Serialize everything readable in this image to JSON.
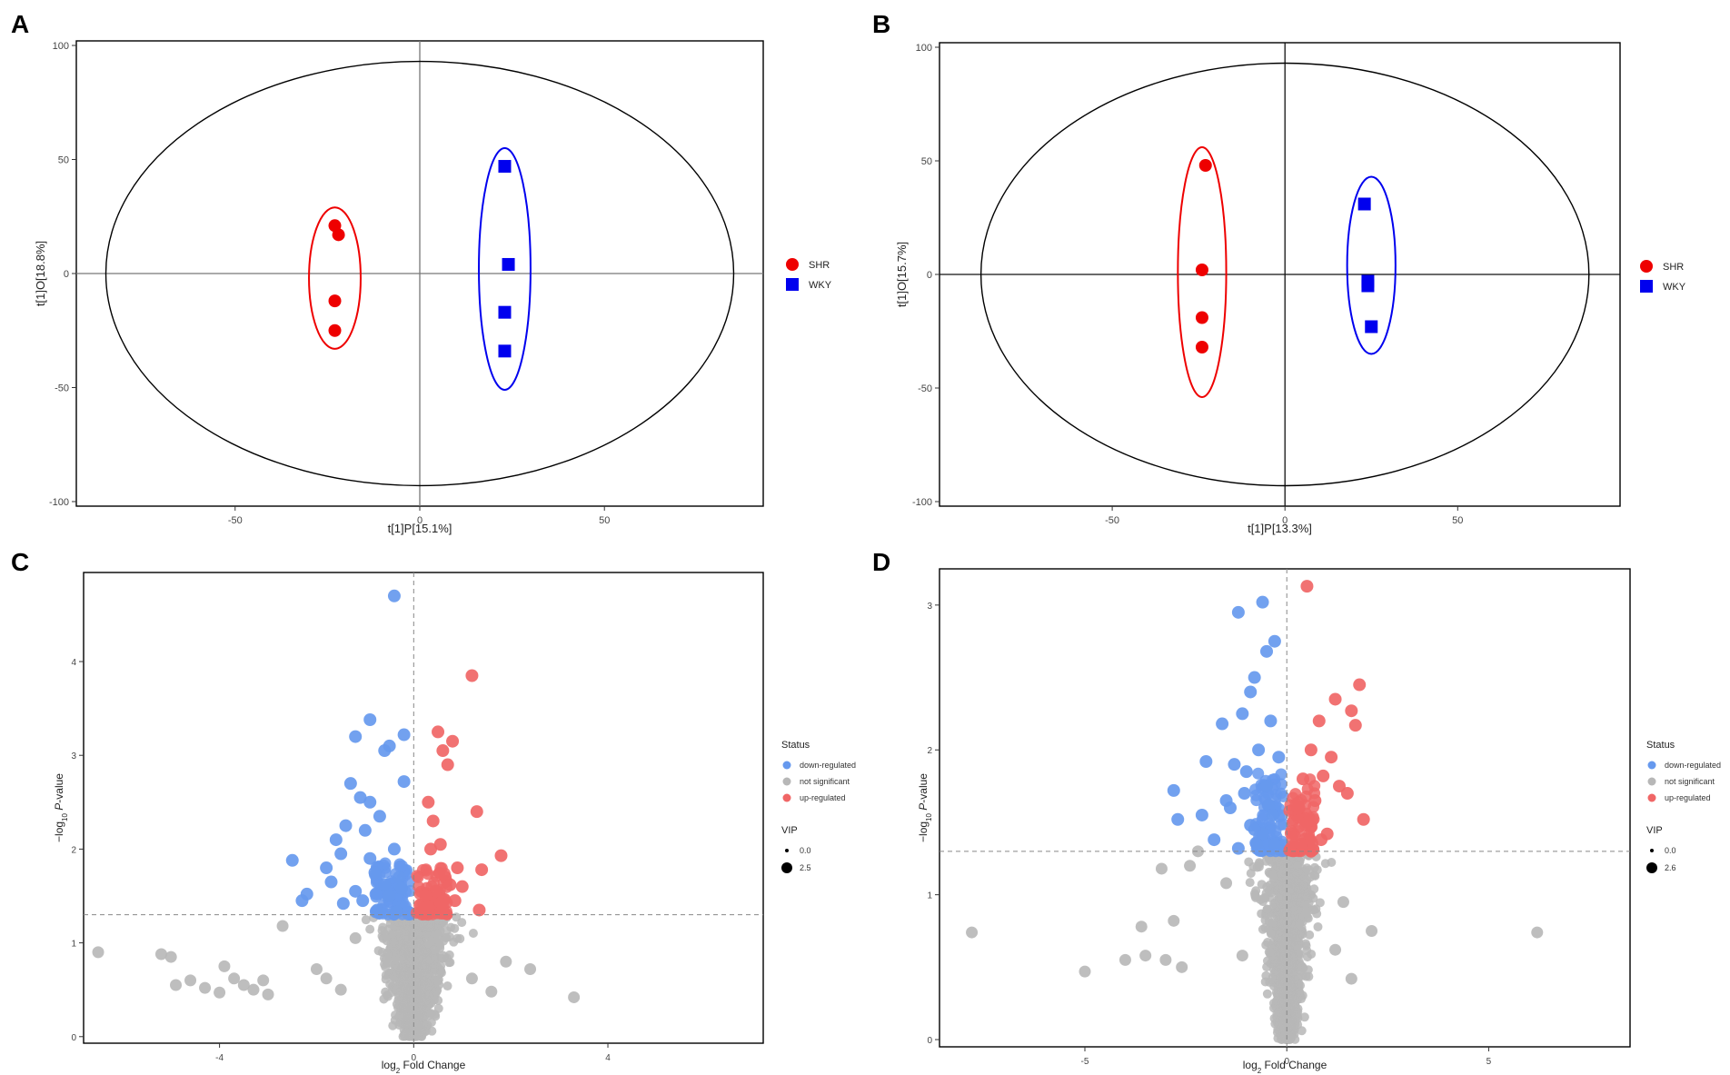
{
  "colors": {
    "shr": "#ee0000",
    "wky": "#0000ee",
    "down": "#6699ee",
    "ns": "#b7b7b7",
    "up": "#f06666",
    "ellipse": "#000000"
  },
  "chart_data": [
    {
      "panel_label": "A",
      "type": "scatter",
      "title": "",
      "xlabel": "t[1]P[15.1%]",
      "ylabel": "t[1]O[18.8%]",
      "xlim": [
        -93,
        93
      ],
      "ylim": [
        -102,
        102
      ],
      "xticks": [
        -50,
        0,
        50
      ],
      "yticks": [
        -100,
        -50,
        0,
        50,
        100
      ],
      "xtick_labels": [
        "-50",
        "0",
        "50"
      ],
      "ytick_labels": [
        "-100",
        "-50",
        "0",
        "50",
        "100"
      ],
      "reference_lines": {
        "x": 0,
        "y": 0
      },
      "legend": {
        "position": "right",
        "entries": [
          "SHR",
          "WKY"
        ]
      },
      "confidence_ellipse": {
        "cx": 0,
        "cy": 0,
        "rx": 85,
        "ry": 93
      },
      "group_ellipses": [
        {
          "group": "SHR",
          "cx": -23,
          "cy": -2,
          "rx": 7,
          "ry": 31
        },
        {
          "group": "WKY",
          "cx": 23,
          "cy": 2,
          "rx": 7,
          "ry": 53
        }
      ],
      "series": [
        {
          "name": "SHR",
          "marker": "circle",
          "x": [
            -23,
            -22,
            -23,
            -23
          ],
          "y": [
            21,
            17,
            -12,
            -25
          ]
        },
        {
          "name": "WKY",
          "marker": "square",
          "x": [
            23,
            24,
            23,
            23
          ],
          "y": [
            47,
            4,
            -17,
            -34
          ]
        }
      ]
    },
    {
      "panel_label": "B",
      "type": "scatter",
      "title": "",
      "xlabel": "t[1]P[13.3%]",
      "ylabel": "t[1]O[15.7%]",
      "xlim": [
        -100,
        97
      ],
      "ylim": [
        -102,
        102
      ],
      "xticks": [
        -50,
        0,
        50
      ],
      "yticks": [
        -100,
        -50,
        0,
        50,
        100
      ],
      "xtick_labels": [
        "-50",
        "0",
        "50"
      ],
      "ytick_labels": [
        "-100",
        "-50",
        "0",
        "50",
        "100"
      ],
      "reference_lines": {
        "x": 0,
        "y": 0
      },
      "legend": {
        "position": "right",
        "entries": [
          "SHR",
          "WKY"
        ]
      },
      "confidence_ellipse": {
        "cx": 0,
        "cy": 0,
        "rx": 88,
        "ry": 93
      },
      "group_ellipses": [
        {
          "group": "SHR",
          "cx": -24,
          "cy": 1,
          "rx": 7,
          "ry": 55
        },
        {
          "group": "WKY",
          "cx": 25,
          "cy": 4,
          "rx": 7,
          "ry": 39
        }
      ],
      "series": [
        {
          "name": "SHR",
          "marker": "circle",
          "x": [
            -23,
            -24,
            -24,
            -24
          ],
          "y": [
            48,
            2,
            -19,
            -32
          ]
        },
        {
          "name": "WKY",
          "marker": "square",
          "x": [
            23,
            24,
            24,
            25
          ],
          "y": [
            31,
            -3,
            -5,
            -23
          ]
        }
      ]
    },
    {
      "panel_label": "C",
      "type": "scatter",
      "title": "",
      "xlabel": "log2 Fold Change",
      "ylabel": "−log10 P-value",
      "xlim": [
        -6.8,
        7.2
      ],
      "ylim": [
        -0.07,
        4.95
      ],
      "xticks": [
        -4,
        0,
        4
      ],
      "yticks": [
        0,
        1,
        2,
        3,
        4
      ],
      "xtick_labels": [
        "-4",
        "0",
        "4"
      ],
      "ytick_labels": [
        "0",
        "1",
        "2",
        "3",
        "4"
      ],
      "threshold_lines": {
        "x": 0,
        "y": 1.3
      },
      "legend": {
        "status_title": "Status",
        "entries": [
          "down-regulated",
          "not significant",
          "up-regulated"
        ],
        "vip_title": "VIP",
        "vip_values": [
          "0.0",
          "2.5"
        ],
        "position": "right"
      },
      "series": [
        {
          "name": "down-regulated",
          "x": [
            -0.4,
            -0.9,
            -1.2,
            -0.5,
            -0.6,
            -0.2,
            -1.3,
            -1.1,
            -0.9,
            -0.2,
            -2.5,
            -2.2,
            -2.3,
            -1.8,
            -1.5,
            -1.6,
            -1.0,
            -0.7,
            -1.4,
            -0.8,
            -0.3,
            -0.6,
            -1.2,
            -0.5,
            -1.7,
            -0.9,
            -0.4,
            -0.25,
            -1.05,
            -1.45,
            -0.75,
            -0.35
          ],
          "y": [
            4.7,
            3.38,
            3.2,
            3.1,
            3.05,
            3.22,
            2.7,
            2.55,
            2.5,
            2.72,
            1.88,
            1.52,
            1.45,
            1.8,
            1.95,
            2.1,
            2.2,
            2.35,
            2.25,
            1.75,
            1.7,
            1.62,
            1.55,
            1.5,
            1.65,
            1.9,
            2.0,
            1.58,
            1.45,
            1.42,
            1.35,
            1.33
          ]
        },
        {
          "name": "up-regulated",
          "x": [
            1.2,
            0.5,
            0.8,
            0.6,
            0.7,
            0.3,
            0.4,
            1.3,
            1.8,
            1.4,
            0.9,
            0.55,
            0.35,
            0.65,
            1.0,
            0.45,
            0.25,
            0.85,
            1.35,
            0.6,
            0.3,
            0.75
          ],
          "y": [
            3.85,
            3.25,
            3.15,
            3.05,
            2.9,
            2.5,
            2.3,
            2.4,
            1.93,
            1.78,
            1.8,
            2.05,
            2.0,
            1.7,
            1.6,
            1.55,
            1.5,
            1.45,
            1.35,
            1.4,
            1.38,
            1.62
          ]
        },
        {
          "name": "not significant",
          "distribution": "dense cloud centred near 0, -log10 P-value below 1.3, plus scattered outliers",
          "x": [
            -6.5,
            -5.2,
            -5.0,
            -4.9,
            -4.6,
            -4.3,
            -4.0,
            -3.9,
            -3.7,
            -3.5,
            -3.3,
            -3.1,
            -3.0,
            -2.7,
            -2.0,
            -1.8,
            -1.5,
            -1.2,
            1.2,
            1.6,
            1.9,
            2.4,
            3.3,
            0.6
          ],
          "y": [
            0.9,
            0.88,
            0.85,
            0.55,
            0.6,
            0.52,
            0.47,
            0.75,
            0.62,
            0.55,
            0.5,
            0.6,
            0.45,
            1.18,
            0.72,
            0.62,
            0.5,
            1.05,
            0.62,
            0.48,
            0.8,
            0.72,
            0.42,
            0.85
          ]
        }
      ]
    },
    {
      "panel_label": "D",
      "type": "scatter",
      "title": "",
      "xlabel": "log2 Fold Change",
      "ylabel": "−log10 P-value",
      "xlim": [
        -8.6,
        8.5
      ],
      "ylim": [
        -0.05,
        3.25
      ],
      "xticks": [
        -5,
        0,
        5
      ],
      "yticks": [
        0,
        1,
        2,
        3
      ],
      "xtick_labels": [
        "-5",
        "0",
        "5"
      ],
      "ytick_labels": [
        "0",
        "1",
        "2",
        "3"
      ],
      "threshold_lines": {
        "x": 0,
        "y": 1.3
      },
      "legend": {
        "status_title": "Status",
        "entries": [
          "down-regulated",
          "not significant",
          "up-regulated"
        ],
        "vip_title": "VIP",
        "vip_values": [
          "0.0",
          "2.6"
        ],
        "position": "right"
      },
      "series": [
        {
          "name": "down-regulated",
          "x": [
            -0.6,
            -1.2,
            -0.3,
            -0.5,
            -0.8,
            -0.9,
            -1.1,
            -0.4,
            -2.0,
            -2.1,
            -1.5,
            -1.3,
            -2.8,
            -1.6,
            -0.7,
            -1.0,
            -0.2,
            -1.4,
            -0.5,
            -0.9,
            -2.7,
            -0.6,
            -1.8,
            -0.3,
            -1.2,
            -0.8,
            -0.45,
            -1.05,
            -0.35,
            -0.75
          ],
          "y": [
            3.02,
            2.95,
            2.75,
            2.68,
            2.5,
            2.4,
            2.25,
            2.2,
            1.92,
            1.55,
            1.65,
            1.9,
            1.72,
            2.18,
            2.0,
            1.85,
            1.95,
            1.6,
            1.75,
            1.48,
            1.52,
            1.42,
            1.38,
            1.35,
            1.32,
            1.45,
            1.62,
            1.7,
            1.55,
            1.35
          ]
        },
        {
          "name": "up-regulated",
          "x": [
            0.5,
            1.8,
            1.2,
            0.8,
            1.6,
            0.6,
            1.1,
            1.7,
            0.4,
            0.9,
            1.3,
            0.3,
            0.7,
            1.9,
            0.5,
            1.0,
            0.35,
            0.85,
            0.6,
            1.5
          ],
          "y": [
            3.13,
            2.45,
            2.35,
            2.2,
            2.27,
            2.0,
            1.95,
            2.17,
            1.8,
            1.82,
            1.75,
            1.6,
            1.65,
            1.52,
            1.5,
            1.42,
            1.35,
            1.38,
            1.3,
            1.7
          ]
        },
        {
          "name": "not significant",
          "distribution": "dense cloud centred near 0, -log10 P-value below 1.3, plus scattered outliers",
          "x": [
            -7.8,
            -5.0,
            -4.0,
            -3.6,
            -3.5,
            -3.1,
            -3.0,
            -2.8,
            -2.6,
            -2.2,
            -1.5,
            2.1,
            1.4,
            6.2,
            -1.1,
            1.6,
            -2.4,
            1.2
          ],
          "y": [
            0.74,
            0.47,
            0.55,
            0.78,
            0.58,
            1.18,
            0.55,
            0.82,
            0.5,
            1.3,
            1.08,
            0.75,
            0.95,
            0.74,
            0.58,
            0.42,
            1.2,
            0.62
          ]
        }
      ]
    }
  ]
}
